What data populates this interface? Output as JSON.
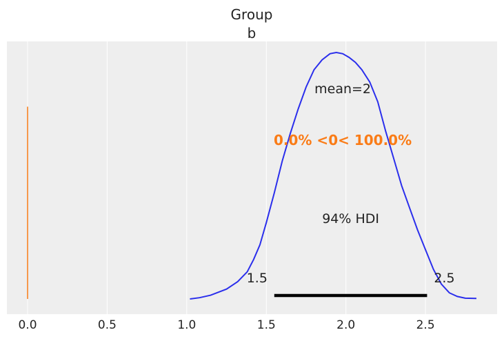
{
  "chart_data": {
    "type": "line",
    "title": "Group",
    "subtitle": "b",
    "xlabel": "",
    "ylabel": "",
    "xlim": [
      -0.13,
      2.95
    ],
    "ylim": [
      0,
      1
    ],
    "grid": true,
    "xticks": [
      0.0,
      0.5,
      1.0,
      1.5,
      2.0,
      2.5
    ],
    "xtick_labels": [
      "0.0",
      "0.5",
      "1.0",
      "1.5",
      "2.0",
      "2.5"
    ],
    "series": [
      {
        "color": "#2a2eec",
        "x": [
          1.02,
          1.08,
          1.15,
          1.25,
          1.32,
          1.38,
          1.42,
          1.46,
          1.5,
          1.55,
          1.6,
          1.65,
          1.7,
          1.75,
          1.8,
          1.85,
          1.9,
          1.94,
          1.98,
          2.02,
          2.06,
          2.1,
          2.15,
          2.2,
          2.25,
          2.3,
          2.35,
          2.4,
          2.45,
          2.5,
          2.55,
          2.6,
          2.65,
          2.7,
          2.75,
          2.82
        ],
        "y": [
          0.0,
          0.005,
          0.015,
          0.04,
          0.07,
          0.11,
          0.16,
          0.22,
          0.31,
          0.43,
          0.56,
          0.67,
          0.77,
          0.86,
          0.93,
          0.97,
          0.995,
          1.0,
          0.995,
          0.98,
          0.96,
          0.93,
          0.88,
          0.8,
          0.68,
          0.57,
          0.46,
          0.37,
          0.28,
          0.2,
          0.12,
          0.06,
          0.025,
          0.01,
          0.003,
          0.002
        ]
      }
    ],
    "hdi": {
      "label": "94% HDI",
      "low": 1.55,
      "high": 2.51,
      "low_label": "1.5",
      "high_label": "2.5"
    },
    "point_estimate": {
      "label": "mean=2",
      "x": 1.98
    },
    "ref_val": {
      "x": 0,
      "label": "0.0% <0< 100.0%",
      "color": "#fa7c17"
    },
    "line_color": "#2a2eec",
    "background": "#eeeeee",
    "grid_color": "#ffffff"
  }
}
